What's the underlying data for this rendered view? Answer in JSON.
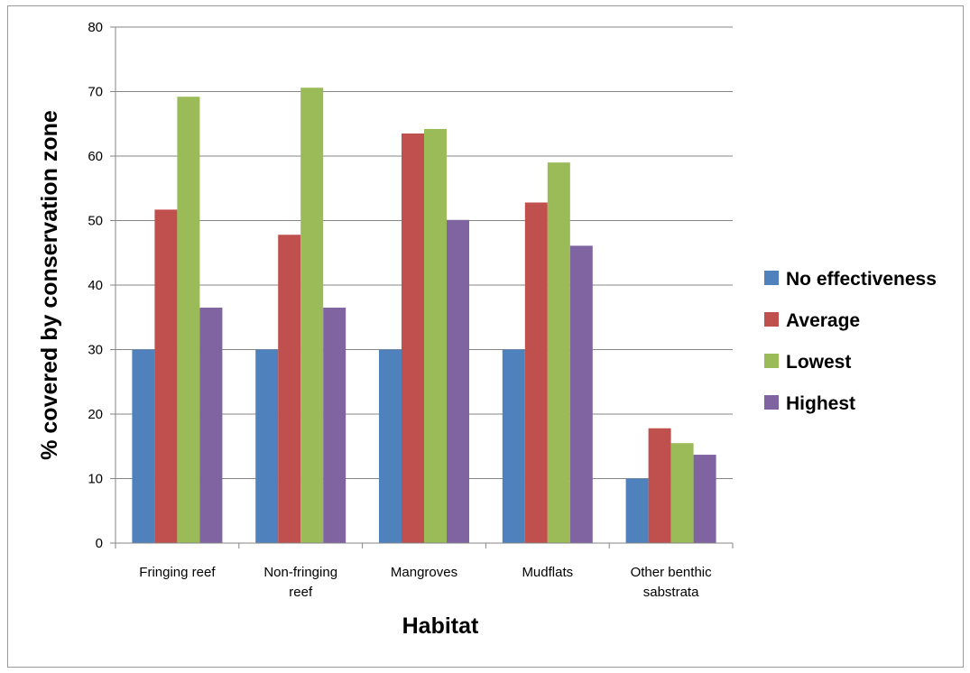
{
  "chart_data": {
    "type": "bar",
    "title": "",
    "xlabel": "Habitat",
    "ylabel": "% covered by conservation zone",
    "ylim": [
      0,
      80
    ],
    "ytick_step": 10,
    "grid": true,
    "legend_position": "right",
    "categories": [
      [
        "Fringing reef"
      ],
      [
        "Non-fringing",
        "reef"
      ],
      [
        "Mangroves"
      ],
      [
        "Mudflats"
      ],
      [
        "Other benthic",
        "sabstrata"
      ]
    ],
    "series": [
      {
        "name": "No effectiveness",
        "color": "#4f81bd",
        "values": [
          30,
          30,
          30,
          30,
          10
        ]
      },
      {
        "name": "Average",
        "color": "#c0504d",
        "values": [
          51.7,
          47.8,
          63.5,
          52.8,
          17.8
        ]
      },
      {
        "name": "Lowest",
        "color": "#9bbb59",
        "values": [
          69.2,
          70.6,
          64.2,
          59.0,
          15.5
        ]
      },
      {
        "name": "Highest",
        "color": "#8064a2",
        "values": [
          36.5,
          36.5,
          50.1,
          46.1,
          13.7
        ]
      }
    ]
  }
}
